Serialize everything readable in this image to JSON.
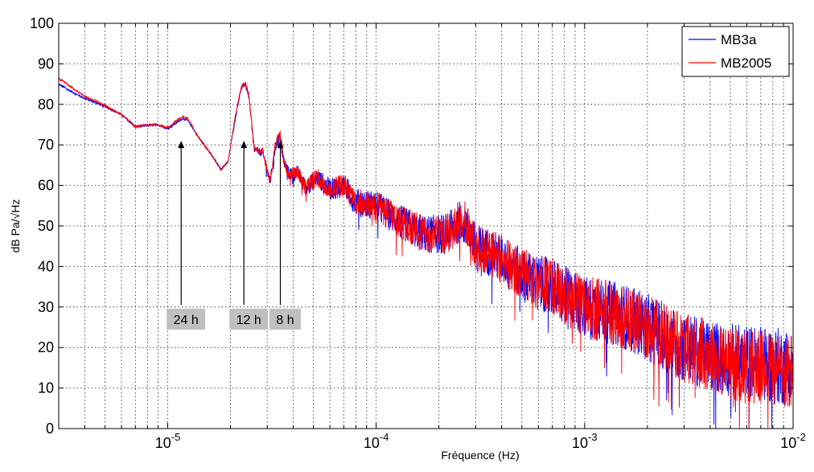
{
  "chart_data": {
    "type": "line",
    "xscale": "log",
    "xlim": [
      3e-06,
      0.01
    ],
    "ylim": [
      0,
      100
    ],
    "yticks": [
      0,
      10,
      20,
      30,
      40,
      50,
      60,
      70,
      80,
      90,
      100
    ],
    "xticks_major": [
      {
        "value": 1e-05,
        "base": "10",
        "exp": "-5"
      },
      {
        "value": 0.0001,
        "base": "10",
        "exp": "-4"
      },
      {
        "value": 0.001,
        "base": "10",
        "exp": "-3"
      },
      {
        "value": 0.01,
        "base": "10",
        "exp": "-2"
      }
    ],
    "xlabel": "Fréquence (Hz)",
    "ylabel": "dB Pa/√Hz",
    "grid": true,
    "legend_position": "top-right",
    "series": [
      {
        "name": "MB3a",
        "color": "#0000ff",
        "points": [
          [
            3e-06,
            85
          ],
          [
            3.5e-06,
            83
          ],
          [
            4e-06,
            81.5
          ],
          [
            5e-06,
            79.5
          ],
          [
            6e-06,
            77.5
          ],
          [
            7e-06,
            74.5
          ],
          [
            8e-06,
            74.8
          ],
          [
            9e-06,
            75
          ],
          [
            1e-05,
            74
          ],
          [
            1.1e-05,
            75.5
          ],
          [
            1.18e-05,
            76.5
          ],
          [
            1.25e-05,
            76
          ],
          [
            1.4e-05,
            72
          ],
          [
            1.6e-05,
            68
          ],
          [
            1.8e-05,
            64
          ],
          [
            1.95e-05,
            66
          ],
          [
            2.1e-05,
            76
          ],
          [
            2.25e-05,
            84
          ],
          [
            2.35e-05,
            85
          ],
          [
            2.45e-05,
            82
          ],
          [
            2.6e-05,
            69
          ],
          [
            2.85e-05,
            68
          ],
          [
            3.1e-05,
            61
          ],
          [
            3.3e-05,
            70
          ],
          [
            3.45e-05,
            72
          ],
          [
            3.6e-05,
            66
          ],
          [
            3.8e-05,
            63
          ],
          [
            4.2e-05,
            63
          ],
          [
            4.6e-05,
            59.5
          ],
          [
            5.2e-05,
            62
          ],
          [
            6e-05,
            59
          ],
          [
            7e-05,
            60
          ],
          [
            8e-05,
            56
          ],
          [
            0.0001,
            55
          ],
          [
            0.00013,
            51
          ],
          [
            0.00017,
            48
          ],
          [
            0.00022,
            48
          ],
          [
            0.00026,
            52
          ],
          [
            0.0003,
            45
          ],
          [
            0.0004,
            42
          ],
          [
            0.0005,
            38
          ],
          [
            0.0006,
            36
          ],
          [
            0.0007,
            35
          ],
          [
            0.0008,
            33
          ],
          [
            0.001,
            30
          ],
          [
            0.0015,
            28
          ],
          [
            0.002,
            25
          ],
          [
            0.003,
            20
          ],
          [
            0.004,
            18
          ],
          [
            0.005,
            17
          ],
          [
            0.007,
            16
          ],
          [
            0.01,
            15
          ]
        ]
      },
      {
        "name": "MB2005",
        "color": "#ff0000",
        "points": [
          [
            3e-06,
            86.5
          ],
          [
            3.5e-06,
            84
          ],
          [
            4e-06,
            82
          ],
          [
            5e-06,
            79.8
          ],
          [
            6e-06,
            77.5
          ],
          [
            7e-06,
            74.6
          ],
          [
            8e-06,
            74.9
          ],
          [
            9e-06,
            75
          ],
          [
            1e-05,
            74.2
          ],
          [
            1.1e-05,
            76
          ],
          [
            1.18e-05,
            77
          ],
          [
            1.25e-05,
            76.5
          ],
          [
            1.4e-05,
            72
          ],
          [
            1.6e-05,
            68
          ],
          [
            1.8e-05,
            63.8
          ],
          [
            1.95e-05,
            66
          ],
          [
            2.1e-05,
            76.5
          ],
          [
            2.25e-05,
            84.5
          ],
          [
            2.35e-05,
            85.5
          ],
          [
            2.45e-05,
            82.5
          ],
          [
            2.6e-05,
            69
          ],
          [
            2.85e-05,
            68.5
          ],
          [
            3.1e-05,
            61
          ],
          [
            3.3e-05,
            71
          ],
          [
            3.45e-05,
            73
          ],
          [
            3.6e-05,
            66
          ],
          [
            3.8e-05,
            63
          ],
          [
            4.2e-05,
            63
          ],
          [
            4.6e-05,
            59.5
          ],
          [
            5.2e-05,
            62
          ],
          [
            6e-05,
            59
          ],
          [
            7e-05,
            60
          ],
          [
            8e-05,
            56
          ],
          [
            0.0001,
            55
          ],
          [
            0.00013,
            51
          ],
          [
            0.00017,
            48
          ],
          [
            0.00022,
            48
          ],
          [
            0.00026,
            52
          ],
          [
            0.0003,
            45
          ],
          [
            0.0004,
            42
          ],
          [
            0.0005,
            38
          ],
          [
            0.0006,
            36
          ],
          [
            0.0007,
            35
          ],
          [
            0.0008,
            33
          ],
          [
            0.001,
            30
          ],
          [
            0.0015,
            28
          ],
          [
            0.002,
            25
          ],
          [
            0.003,
            20
          ],
          [
            0.004,
            18
          ],
          [
            0.005,
            16
          ],
          [
            0.007,
            15
          ],
          [
            0.01,
            14
          ]
        ]
      }
    ],
    "annotations": [
      {
        "label": "24 h",
        "arrow_x": 1.16e-05,
        "arrow_y_from": 30.5,
        "arrow_y_to": 71,
        "box_x": 1.16e-05,
        "box_y": 27
      },
      {
        "label": "12 h",
        "arrow_x": 2.32e-05,
        "arrow_y_from": 30.5,
        "arrow_y_to": 71,
        "box_x": 2.32e-05,
        "box_y": 27
      },
      {
        "label": "8 h",
        "arrow_x": 3.47e-05,
        "arrow_y_from": 30.5,
        "arrow_y_to": 71,
        "box_x": 3.47e-05,
        "box_y": 27
      }
    ]
  }
}
